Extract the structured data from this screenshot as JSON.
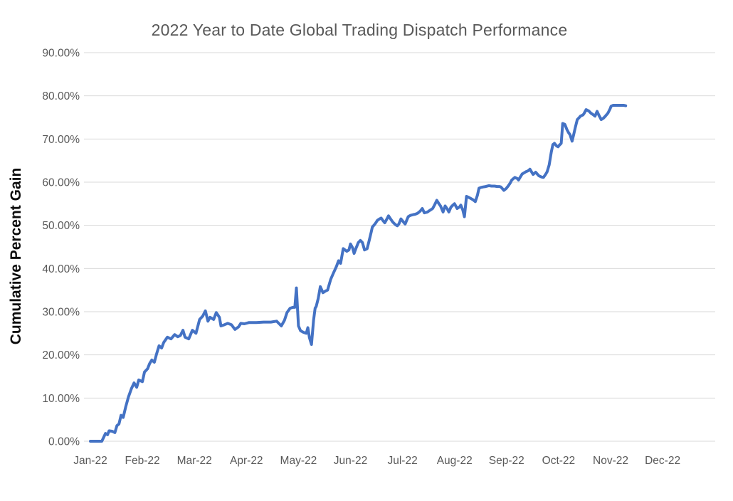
{
  "chart_data": {
    "type": "line",
    "title": "2022 Year to Date Global Trading Dispatch Performance",
    "xlabel": "",
    "ylabel": "Cumulative Percent Gain",
    "grid": true,
    "legend_position": "none",
    "ylim": [
      0,
      90
    ],
    "y_ticks": [
      0,
      10,
      20,
      30,
      40,
      50,
      60,
      70,
      80,
      90
    ],
    "y_tick_labels": [
      "0.00%",
      "10.00%",
      "20.00%",
      "30.00%",
      "40.00%",
      "50.00%",
      "60.00%",
      "70.00%",
      "80.00%",
      "90.00%"
    ],
    "x_tick_labels": [
      "Jan-22",
      "Feb-22",
      "Mar-22",
      "Apr-22",
      "May-22",
      "Jun-22",
      "Jul-22",
      "Aug-22",
      "Sep-22",
      "Oct-22",
      "Nov-22",
      "Dec-22"
    ],
    "series": [
      {
        "name": "Cumulative Percent Gain",
        "color": "#4472C4",
        "x_unit": "months-since-Jan-22",
        "y_unit": "percent",
        "points": [
          [
            0.0,
            0.0
          ],
          [
            0.22,
            0.0
          ],
          [
            0.29,
            1.8
          ],
          [
            0.33,
            1.5
          ],
          [
            0.36,
            2.4
          ],
          [
            0.42,
            2.3
          ],
          [
            0.47,
            2.0
          ],
          [
            0.51,
            3.6
          ],
          [
            0.55,
            4.0
          ],
          [
            0.59,
            6.0
          ],
          [
            0.63,
            5.5
          ],
          [
            0.68,
            8.0
          ],
          [
            0.73,
            10.2
          ],
          [
            0.79,
            12.2
          ],
          [
            0.84,
            13.5
          ],
          [
            0.89,
            12.5
          ],
          [
            0.93,
            14.2
          ],
          [
            1.0,
            13.8
          ],
          [
            1.04,
            16.0
          ],
          [
            1.1,
            16.8
          ],
          [
            1.14,
            18.0
          ],
          [
            1.18,
            18.8
          ],
          [
            1.23,
            18.3
          ],
          [
            1.27,
            20.1
          ],
          [
            1.32,
            22.1
          ],
          [
            1.37,
            21.6
          ],
          [
            1.41,
            22.9
          ],
          [
            1.48,
            24.1
          ],
          [
            1.55,
            23.7
          ],
          [
            1.62,
            24.7
          ],
          [
            1.68,
            24.2
          ],
          [
            1.73,
            24.5
          ],
          [
            1.78,
            25.7
          ],
          [
            1.82,
            24.1
          ],
          [
            1.89,
            23.7
          ],
          [
            1.96,
            25.7
          ],
          [
            2.03,
            25.0
          ],
          [
            2.1,
            28.2
          ],
          [
            2.16,
            29.0
          ],
          [
            2.21,
            30.2
          ],
          [
            2.26,
            27.8
          ],
          [
            2.3,
            28.7
          ],
          [
            2.37,
            28.2
          ],
          [
            2.42,
            29.8
          ],
          [
            2.48,
            28.7
          ],
          [
            2.51,
            26.7
          ],
          [
            2.58,
            27.0
          ],
          [
            2.64,
            27.3
          ],
          [
            2.71,
            27.0
          ],
          [
            2.78,
            25.9
          ],
          [
            2.85,
            26.5
          ],
          [
            2.89,
            27.3
          ],
          [
            2.96,
            27.2
          ],
          [
            3.05,
            27.5
          ],
          [
            3.19,
            27.5
          ],
          [
            3.33,
            27.6
          ],
          [
            3.47,
            27.6
          ],
          [
            3.58,
            27.8
          ],
          [
            3.63,
            27.2
          ],
          [
            3.67,
            26.7
          ],
          [
            3.73,
            28.0
          ],
          [
            3.78,
            29.8
          ],
          [
            3.84,
            30.8
          ],
          [
            3.89,
            31.0
          ],
          [
            3.93,
            31.0
          ],
          [
            3.96,
            35.5
          ],
          [
            4.0,
            26.7
          ],
          [
            4.04,
            25.6
          ],
          [
            4.1,
            25.2
          ],
          [
            4.15,
            25.0
          ],
          [
            4.18,
            26.3
          ],
          [
            4.21,
            24.0
          ],
          [
            4.25,
            22.4
          ],
          [
            4.29,
            28.0
          ],
          [
            4.32,
            30.8
          ],
          [
            4.34,
            31.2
          ],
          [
            4.38,
            33.1
          ],
          [
            4.42,
            35.8
          ],
          [
            4.47,
            34.4
          ],
          [
            4.52,
            34.8
          ],
          [
            4.56,
            35.0
          ],
          [
            4.62,
            37.5
          ],
          [
            4.67,
            38.9
          ],
          [
            4.73,
            40.5
          ],
          [
            4.77,
            41.8
          ],
          [
            4.81,
            41.2
          ],
          [
            4.86,
            44.6
          ],
          [
            4.93,
            44.0
          ],
          [
            4.97,
            44.3
          ],
          [
            5.0,
            45.7
          ],
          [
            5.04,
            44.8
          ],
          [
            5.07,
            43.5
          ],
          [
            5.11,
            44.8
          ],
          [
            5.15,
            46.0
          ],
          [
            5.19,
            46.5
          ],
          [
            5.23,
            46.0
          ],
          [
            5.27,
            44.3
          ],
          [
            5.32,
            44.6
          ],
          [
            5.36,
            46.5
          ],
          [
            5.4,
            48.5
          ],
          [
            5.42,
            49.6
          ],
          [
            5.47,
            50.3
          ],
          [
            5.52,
            51.2
          ],
          [
            5.56,
            51.5
          ],
          [
            5.59,
            51.7
          ],
          [
            5.63,
            51.0
          ],
          [
            5.66,
            50.6
          ],
          [
            5.7,
            51.5
          ],
          [
            5.73,
            52.2
          ],
          [
            5.77,
            51.5
          ],
          [
            5.81,
            50.8
          ],
          [
            5.86,
            50.2
          ],
          [
            5.9,
            49.9
          ],
          [
            5.93,
            50.3
          ],
          [
            5.97,
            51.5
          ],
          [
            6.05,
            50.3
          ],
          [
            6.11,
            52.0
          ],
          [
            6.15,
            52.3
          ],
          [
            6.21,
            52.5
          ],
          [
            6.25,
            52.6
          ],
          [
            6.29,
            52.8
          ],
          [
            6.34,
            53.3
          ],
          [
            6.38,
            53.9
          ],
          [
            6.42,
            52.9
          ],
          [
            6.48,
            53.1
          ],
          [
            6.53,
            53.5
          ],
          [
            6.58,
            53.9
          ],
          [
            6.62,
            54.8
          ],
          [
            6.66,
            55.8
          ],
          [
            6.7,
            55.0
          ],
          [
            6.73,
            54.5
          ],
          [
            6.78,
            53.1
          ],
          [
            6.82,
            54.5
          ],
          [
            6.86,
            53.8
          ],
          [
            6.89,
            53.1
          ],
          [
            6.93,
            54.2
          ],
          [
            6.97,
            54.7
          ],
          [
            7.0,
            55.0
          ],
          [
            7.05,
            53.9
          ],
          [
            7.1,
            54.3
          ],
          [
            7.12,
            54.7
          ],
          [
            7.16,
            53.5
          ],
          [
            7.19,
            52.0
          ],
          [
            7.23,
            56.7
          ],
          [
            7.27,
            56.5
          ],
          [
            7.3,
            56.3
          ],
          [
            7.36,
            55.9
          ],
          [
            7.4,
            55.5
          ],
          [
            7.44,
            57.0
          ],
          [
            7.47,
            58.6
          ],
          [
            7.51,
            58.8
          ],
          [
            7.55,
            58.9
          ],
          [
            7.6,
            59.0
          ],
          [
            7.66,
            59.2
          ],
          [
            7.71,
            59.1
          ],
          [
            7.77,
            59.1
          ],
          [
            7.82,
            59.0
          ],
          [
            7.86,
            59.0
          ],
          [
            7.89,
            58.9
          ],
          [
            7.95,
            58.1
          ],
          [
            7.99,
            58.5
          ],
          [
            8.03,
            59.1
          ],
          [
            8.07,
            59.8
          ],
          [
            8.1,
            60.5
          ],
          [
            8.14,
            60.9
          ],
          [
            8.16,
            61.1
          ],
          [
            8.21,
            60.8
          ],
          [
            8.23,
            60.5
          ],
          [
            8.27,
            61.3
          ],
          [
            8.3,
            61.9
          ],
          [
            8.34,
            62.2
          ],
          [
            8.37,
            62.4
          ],
          [
            8.41,
            62.6
          ],
          [
            8.45,
            63.0
          ],
          [
            8.51,
            61.8
          ],
          [
            8.56,
            62.3
          ],
          [
            8.62,
            61.5
          ],
          [
            8.67,
            61.2
          ],
          [
            8.71,
            61.1
          ],
          [
            8.75,
            61.8
          ],
          [
            8.78,
            62.4
          ],
          [
            8.82,
            64.0
          ],
          [
            8.86,
            67.0
          ],
          [
            8.89,
            68.7
          ],
          [
            8.92,
            69.0
          ],
          [
            8.96,
            68.4
          ],
          [
            8.99,
            68.2
          ],
          [
            9.01,
            68.5
          ],
          [
            9.05,
            69.0
          ],
          [
            9.08,
            73.6
          ],
          [
            9.12,
            73.4
          ],
          [
            9.16,
            72.2
          ],
          [
            9.19,
            71.5
          ],
          [
            9.22,
            71.0
          ],
          [
            9.26,
            69.5
          ],
          [
            9.29,
            71.0
          ],
          [
            9.32,
            72.6
          ],
          [
            9.36,
            74.5
          ],
          [
            9.4,
            75.0
          ],
          [
            9.42,
            75.3
          ],
          [
            9.47,
            75.6
          ],
          [
            9.49,
            75.9
          ],
          [
            9.53,
            76.8
          ],
          [
            9.58,
            76.5
          ],
          [
            9.62,
            76.0
          ],
          [
            9.66,
            75.7
          ],
          [
            9.7,
            75.3
          ],
          [
            9.74,
            76.4
          ],
          [
            9.78,
            75.4
          ],
          [
            9.82,
            74.5
          ],
          [
            9.86,
            74.8
          ],
          [
            9.9,
            75.3
          ],
          [
            9.95,
            76.0
          ],
          [
            9.99,
            77.0
          ],
          [
            10.01,
            77.6
          ],
          [
            10.05,
            77.8
          ],
          [
            10.11,
            77.8
          ],
          [
            10.18,
            77.8
          ],
          [
            10.25,
            77.8
          ],
          [
            10.29,
            77.7
          ]
        ]
      }
    ]
  }
}
